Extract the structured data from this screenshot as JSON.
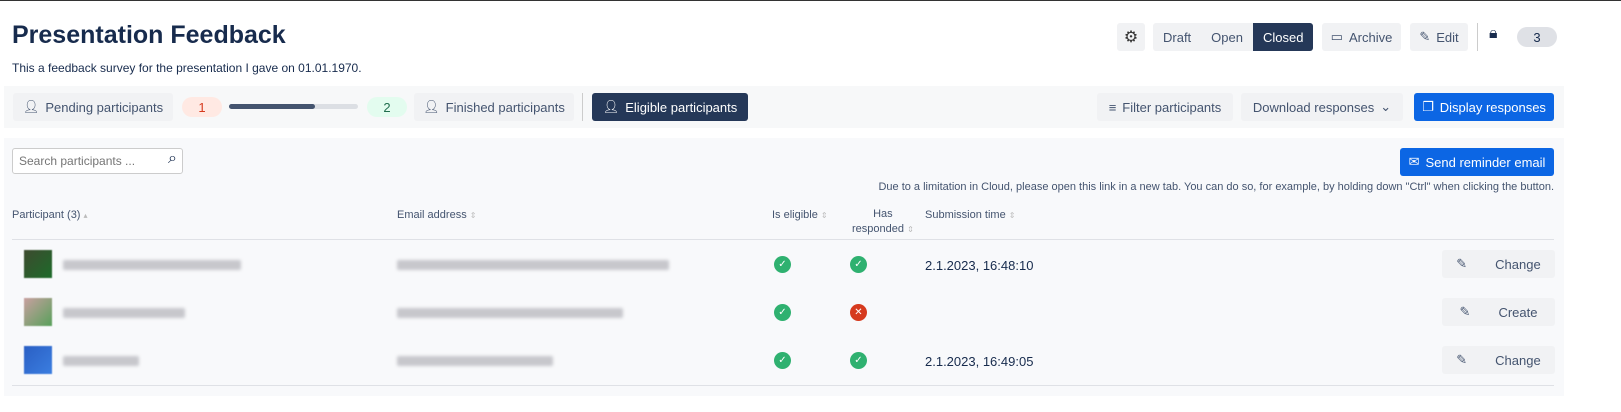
{
  "header": {
    "title": "Presentation Feedback",
    "description": "This a feedback survey for the presentation I gave on 01.01.1970."
  },
  "toolbar": {
    "settings_icon": "gear-icon",
    "status_options": [
      "Draft",
      "Open",
      "Closed"
    ],
    "status_selected": "Closed",
    "archive": "Archive",
    "edit": "Edit",
    "lock_icon": "lock-icon",
    "lock_count": "3"
  },
  "filters": {
    "pending": "Pending participants",
    "pending_count": "1",
    "progress_percent": 67,
    "finished_count": "2",
    "finished": "Finished participants",
    "eligible": "Eligible participants",
    "filter": "Filter participants",
    "download": "Download responses",
    "display": "Display responses"
  },
  "search": {
    "placeholder": "Search participants ..."
  },
  "reminder": {
    "button": "Send reminder email",
    "note": "Due to a limitation in Cloud, please open this link in a new tab. You can do so, for example, by holding down \"Ctrl\" when clicking the button."
  },
  "table": {
    "headers": {
      "participant": "Participant (3)",
      "email": "Email address",
      "eligible": "Is eligible",
      "responded_1": "Has",
      "responded_2": "responded",
      "time": "Submission time"
    },
    "rows": [
      {
        "eligible": true,
        "responded": true,
        "time": "2.1.2023, 16:48:10",
        "action": "Change"
      },
      {
        "eligible": true,
        "responded": false,
        "time": "",
        "action": "Create"
      },
      {
        "eligible": true,
        "responded": true,
        "time": "2.1.2023, 16:49:05",
        "action": "Change"
      }
    ]
  },
  "colors": {
    "dark": "#253858",
    "accent": "#0c66e4",
    "success": "#2fb170",
    "danger": "#d63a1e"
  }
}
